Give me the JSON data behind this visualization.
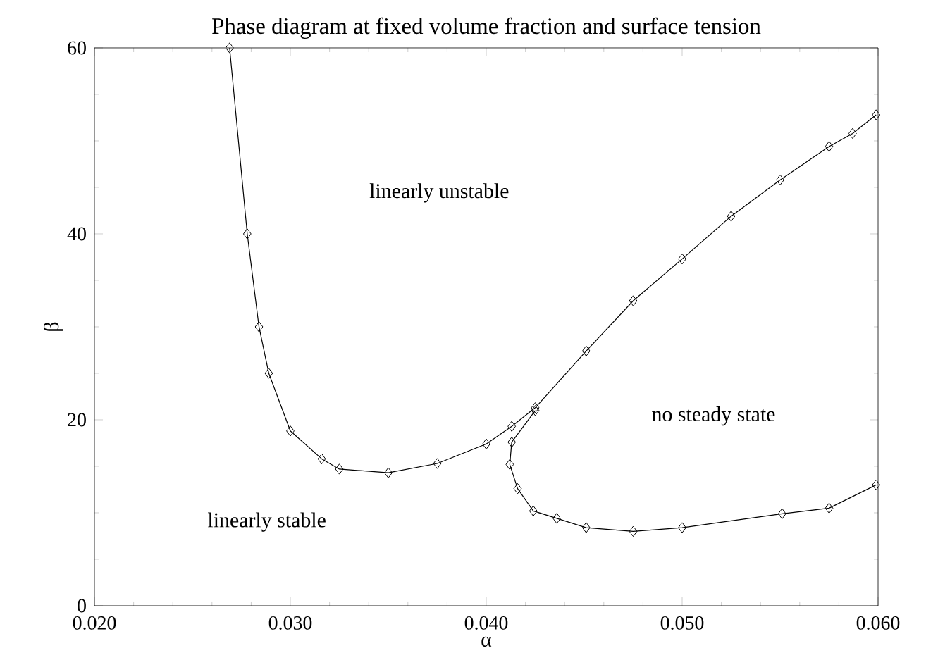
{
  "chart_data": {
    "type": "line",
    "title": "Phase diagram at fixed volume fraction and surface tension",
    "xlabel": "α",
    "ylabel": "β",
    "xlim": [
      0.02,
      0.06
    ],
    "ylim": [
      0,
      60
    ],
    "xticks": [
      {
        "value": 0.02,
        "label": "0.020"
      },
      {
        "value": 0.03,
        "label": "0.030"
      },
      {
        "value": 0.04,
        "label": "0.040"
      },
      {
        "value": 0.05,
        "label": "0.050"
      },
      {
        "value": 0.06,
        "label": "0.060"
      }
    ],
    "yticks": [
      0,
      20,
      40,
      60
    ],
    "marker": "diamond",
    "line_style": "solid",
    "grid": false,
    "series": [
      {
        "color": "#000000",
        "x": [
          0.0269,
          0.0278,
          0.0284,
          0.0289,
          0.03,
          0.0316,
          0.0325,
          0.035,
          0.0375,
          0.04,
          0.0413,
          0.0425,
          0.0451,
          0.0475,
          0.05,
          0.0525,
          0.055,
          0.0575,
          0.0587,
          0.0599
        ],
        "values": [
          60,
          40,
          30,
          25,
          18.8,
          15.8,
          14.7,
          14.3,
          15.3,
          17.4,
          19.3,
          21.3,
          27.4,
          32.8,
          37.3,
          41.9,
          45.8,
          49.4,
          50.8,
          52.8
        ]
      },
      {
        "color": "#000000",
        "x": [
          0.0425,
          0.0413,
          0.0412,
          0.0416,
          0.0424,
          0.0436,
          0.0451,
          0.0475,
          0.05,
          0.0551,
          0.0575,
          0.0599
        ],
        "values": [
          21.0,
          17.6,
          15.2,
          12.6,
          10.2,
          9.4,
          8.4,
          8.0,
          8.4,
          9.9,
          10.5,
          13.0
        ]
      }
    ],
    "annotations": [
      "linearly unstable",
      "linearly stable",
      "no steady state"
    ]
  }
}
